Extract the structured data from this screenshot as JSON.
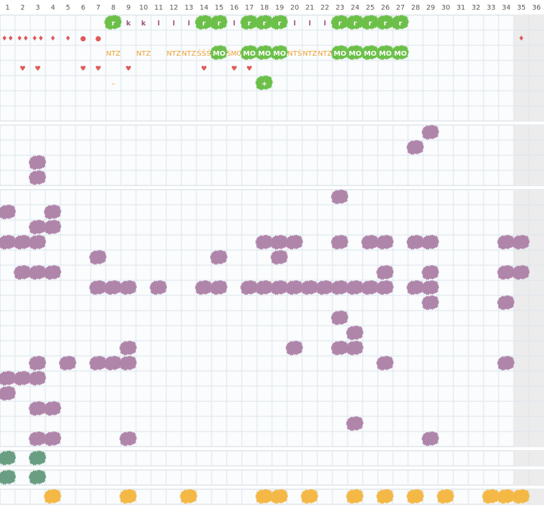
{
  "columns": [
    1,
    2,
    3,
    4,
    5,
    6,
    7,
    8,
    9,
    10,
    11,
    12,
    13,
    14,
    15,
    16,
    17,
    18,
    19,
    20,
    21,
    22,
    23,
    24,
    25,
    26,
    27,
    28,
    29,
    30,
    31,
    32,
    33,
    34,
    35,
    36
  ],
  "sections": [
    {
      "rows": [
        {
          "cells": [
            {
              "col": 8,
              "text": "r",
              "style": "green"
            },
            {
              "col": 9,
              "text": "k",
              "style": "letter"
            },
            {
              "col": 10,
              "text": "k",
              "style": "letter"
            },
            {
              "col": 11,
              "text": "l",
              "style": "letter"
            },
            {
              "col": 12,
              "text": "l",
              "style": "letter"
            },
            {
              "col": 13,
              "text": "l",
              "style": "letter"
            },
            {
              "col": 14,
              "text": "r",
              "style": "green"
            },
            {
              "col": 15,
              "text": "r",
              "style": "green"
            },
            {
              "col": 16,
              "text": "l",
              "style": "letter"
            },
            {
              "col": 17,
              "text": "r",
              "style": "green"
            },
            {
              "col": 18,
              "text": "r",
              "style": "green"
            },
            {
              "col": 19,
              "text": "r",
              "style": "green"
            },
            {
              "col": 20,
              "text": "l",
              "style": "letter"
            },
            {
              "col": 21,
              "text": "l",
              "style": "letter"
            },
            {
              "col": 22,
              "text": "l",
              "style": "letter"
            },
            {
              "col": 23,
              "text": "r",
              "style": "green"
            },
            {
              "col": 24,
              "text": "r",
              "style": "green"
            },
            {
              "col": 25,
              "text": "r",
              "style": "green"
            },
            {
              "col": 26,
              "text": "r",
              "style": "green"
            },
            {
              "col": 27,
              "text": "r",
              "style": "green"
            }
          ]
        },
        {
          "cells": [
            {
              "col": 1,
              "text": "♦♦",
              "style": "red"
            },
            {
              "col": 2,
              "text": "♦♦",
              "style": "red"
            },
            {
              "col": 3,
              "text": "♦♦",
              "style": "red"
            },
            {
              "col": 4,
              "text": "♦",
              "style": "red"
            },
            {
              "col": 5,
              "text": "♦",
              "style": "red"
            },
            {
              "col": 6,
              "text": "●",
              "style": "red"
            },
            {
              "col": 7,
              "text": "●",
              "style": "red"
            },
            {
              "col": 35,
              "text": "♦",
              "style": "red"
            }
          ]
        },
        {
          "cells": [
            {
              "col": 8,
              "text": "NTZ",
              "style": "orange"
            },
            {
              "col": 10,
              "text": "NTZ",
              "style": "orange"
            },
            {
              "col": 12,
              "text": "NTZ",
              "style": "orange"
            },
            {
              "col": 13,
              "text": "NTZ",
              "style": "orange"
            },
            {
              "col": 14,
              "text": "ŚŚŚ",
              "style": "orange"
            },
            {
              "col": 15,
              "text": "MO",
              "style": "green"
            },
            {
              "col": 16,
              "text": "ŚMO",
              "style": "orange"
            },
            {
              "col": 17,
              "text": "MO",
              "style": "green"
            },
            {
              "col": 18,
              "text": "MO",
              "style": "green"
            },
            {
              "col": 19,
              "text": "MO",
              "style": "green"
            },
            {
              "col": 20,
              "text": "NTŚ",
              "style": "orange"
            },
            {
              "col": 21,
              "text": "NTZ",
              "style": "orange"
            },
            {
              "col": 22,
              "text": "NTZ",
              "style": "orange"
            },
            {
              "col": 23,
              "text": "MO",
              "style": "green"
            },
            {
              "col": 24,
              "text": "MO",
              "style": "green"
            },
            {
              "col": 25,
              "text": "MO",
              "style": "green"
            },
            {
              "col": 26,
              "text": "MO",
              "style": "green"
            },
            {
              "col": 27,
              "text": "MO",
              "style": "green"
            }
          ]
        },
        {
          "cells": [
            {
              "col": 2,
              "text": "♥",
              "style": "red"
            },
            {
              "col": 3,
              "text": "♥",
              "style": "red"
            },
            {
              "col": 6,
              "text": "♥",
              "style": "red"
            },
            {
              "col": 7,
              "text": "♥",
              "style": "red"
            },
            {
              "col": 9,
              "text": "♥",
              "style": "red"
            },
            {
              "col": 14,
              "text": "♥",
              "style": "red"
            },
            {
              "col": 16,
              "text": "♥",
              "style": "red"
            },
            {
              "col": 17,
              "text": "♥",
              "style": "red"
            }
          ]
        },
        {
          "cells": [
            {
              "col": 8,
              "text": "–",
              "style": "orange"
            },
            {
              "col": 18,
              "text": "+",
              "style": "green"
            }
          ]
        },
        {
          "cells": []
        },
        {
          "cells": []
        }
      ]
    },
    {
      "rows": [
        {
          "cells": [
            {
              "col": 29,
              "style": "purple"
            }
          ]
        },
        {
          "cells": [
            {
              "col": 28,
              "style": "purple"
            }
          ]
        },
        {
          "cells": [
            {
              "col": 3,
              "style": "purple"
            }
          ]
        },
        {
          "cells": [
            {
              "col": 3,
              "style": "purple"
            }
          ]
        }
      ]
    },
    {
      "rows": [
        {
          "cells": [
            {
              "col": 23,
              "style": "purple"
            }
          ]
        },
        {
          "cells": [
            {
              "col": 1,
              "style": "purple"
            },
            {
              "col": 4,
              "style": "purple"
            }
          ]
        },
        {
          "cells": [
            {
              "col": 3,
              "style": "purple"
            },
            {
              "col": 4,
              "style": "purple"
            }
          ]
        },
        {
          "cells": [
            {
              "col": 1,
              "style": "purple"
            },
            {
              "col": 2,
              "style": "purple"
            },
            {
              "col": 3,
              "style": "purple"
            },
            {
              "col": 18,
              "style": "purple"
            },
            {
              "col": 19,
              "style": "purple"
            },
            {
              "col": 20,
              "style": "purple"
            },
            {
              "col": 23,
              "style": "purple"
            },
            {
              "col": 25,
              "style": "purple"
            },
            {
              "col": 26,
              "style": "purple"
            },
            {
              "col": 28,
              "style": "purple"
            },
            {
              "col": 29,
              "style": "purple"
            },
            {
              "col": 34,
              "style": "purple"
            },
            {
              "col": 35,
              "style": "purple"
            }
          ]
        },
        {
          "cells": [
            {
              "col": 7,
              "style": "purple"
            },
            {
              "col": 15,
              "style": "purple"
            },
            {
              "col": 19,
              "style": "purple"
            }
          ]
        },
        {
          "cells": [
            {
              "col": 2,
              "style": "purple"
            },
            {
              "col": 3,
              "style": "purple"
            },
            {
              "col": 4,
              "style": "purple"
            },
            {
              "col": 26,
              "style": "purple"
            },
            {
              "col": 29,
              "style": "purple"
            },
            {
              "col": 34,
              "style": "purple"
            },
            {
              "col": 35,
              "style": "purple"
            }
          ]
        },
        {
          "cells": [
            {
              "col": 7,
              "style": "purple"
            },
            {
              "col": 8,
              "style": "purple"
            },
            {
              "col": 9,
              "style": "purple"
            },
            {
              "col": 11,
              "style": "purple"
            },
            {
              "col": 14,
              "style": "purple"
            },
            {
              "col": 15,
              "style": "purple"
            },
            {
              "col": 17,
              "style": "purple"
            },
            {
              "col": 18,
              "style": "purple"
            },
            {
              "col": 19,
              "style": "purple"
            },
            {
              "col": 20,
              "style": "purple"
            },
            {
              "col": 21,
              "style": "purple"
            },
            {
              "col": 22,
              "style": "purple"
            },
            {
              "col": 23,
              "style": "purple"
            },
            {
              "col": 24,
              "style": "purple"
            },
            {
              "col": 25,
              "style": "purple"
            },
            {
              "col": 26,
              "style": "purple"
            },
            {
              "col": 28,
              "style": "purple"
            },
            {
              "col": 29,
              "style": "purple"
            }
          ]
        },
        {
          "cells": [
            {
              "col": 29,
              "style": "purple"
            },
            {
              "col": 34,
              "style": "purple"
            }
          ]
        },
        {
          "cells": [
            {
              "col": 23,
              "style": "purple"
            }
          ]
        },
        {
          "cells": [
            {
              "col": 24,
              "style": "purple"
            }
          ]
        },
        {
          "cells": [
            {
              "col": 9,
              "style": "purple"
            },
            {
              "col": 20,
              "style": "purple"
            },
            {
              "col": 23,
              "style": "purple"
            },
            {
              "col": 24,
              "style": "purple"
            }
          ]
        },
        {
          "cells": [
            {
              "col": 3,
              "style": "purple"
            },
            {
              "col": 5,
              "style": "purple"
            },
            {
              "col": 7,
              "style": "purple"
            },
            {
              "col": 8,
              "style": "purple"
            },
            {
              "col": 9,
              "style": "purple"
            },
            {
              "col": 26,
              "style": "purple"
            },
            {
              "col": 34,
              "style": "purple"
            }
          ]
        },
        {
          "cells": [
            {
              "col": 1,
              "style": "purple"
            },
            {
              "col": 2,
              "style": "purple"
            },
            {
              "col": 3,
              "style": "purple"
            }
          ]
        },
        {
          "cells": [
            {
              "col": 1,
              "style": "purple"
            }
          ]
        },
        {
          "cells": [
            {
              "col": 3,
              "style": "purple"
            },
            {
              "col": 4,
              "style": "purple"
            }
          ]
        },
        {
          "cells": [
            {
              "col": 24,
              "style": "purple"
            }
          ]
        },
        {
          "cells": [
            {
              "col": 3,
              "style": "purple"
            },
            {
              "col": 4,
              "style": "purple"
            },
            {
              "col": 9,
              "style": "purple"
            },
            {
              "col": 29,
              "style": "purple"
            }
          ]
        }
      ]
    },
    {
      "rows": [
        {
          "cells": [
            {
              "col": 1,
              "style": "teal"
            },
            {
              "col": 3,
              "style": "teal"
            }
          ]
        }
      ]
    },
    {
      "rows": [
        {
          "cells": [
            {
              "col": 1,
              "style": "teal"
            },
            {
              "col": 3,
              "style": "teal"
            }
          ]
        }
      ]
    },
    {
      "rows": [
        {
          "cells": [
            {
              "col": 4,
              "style": "yellow"
            },
            {
              "col": 9,
              "style": "yellow"
            },
            {
              "col": 13,
              "style": "yellow"
            },
            {
              "col": 18,
              "style": "yellow"
            },
            {
              "col": 19,
              "style": "yellow"
            },
            {
              "col": 21,
              "style": "yellow"
            },
            {
              "col": 24,
              "style": "yellow"
            },
            {
              "col": 26,
              "style": "yellow"
            },
            {
              "col": 28,
              "style": "yellow"
            },
            {
              "col": 30,
              "style": "yellow"
            },
            {
              "col": 33,
              "style": "yellow"
            },
            {
              "col": 34,
              "style": "yellow"
            },
            {
              "col": 35,
              "style": "yellow"
            }
          ]
        }
      ]
    }
  ]
}
